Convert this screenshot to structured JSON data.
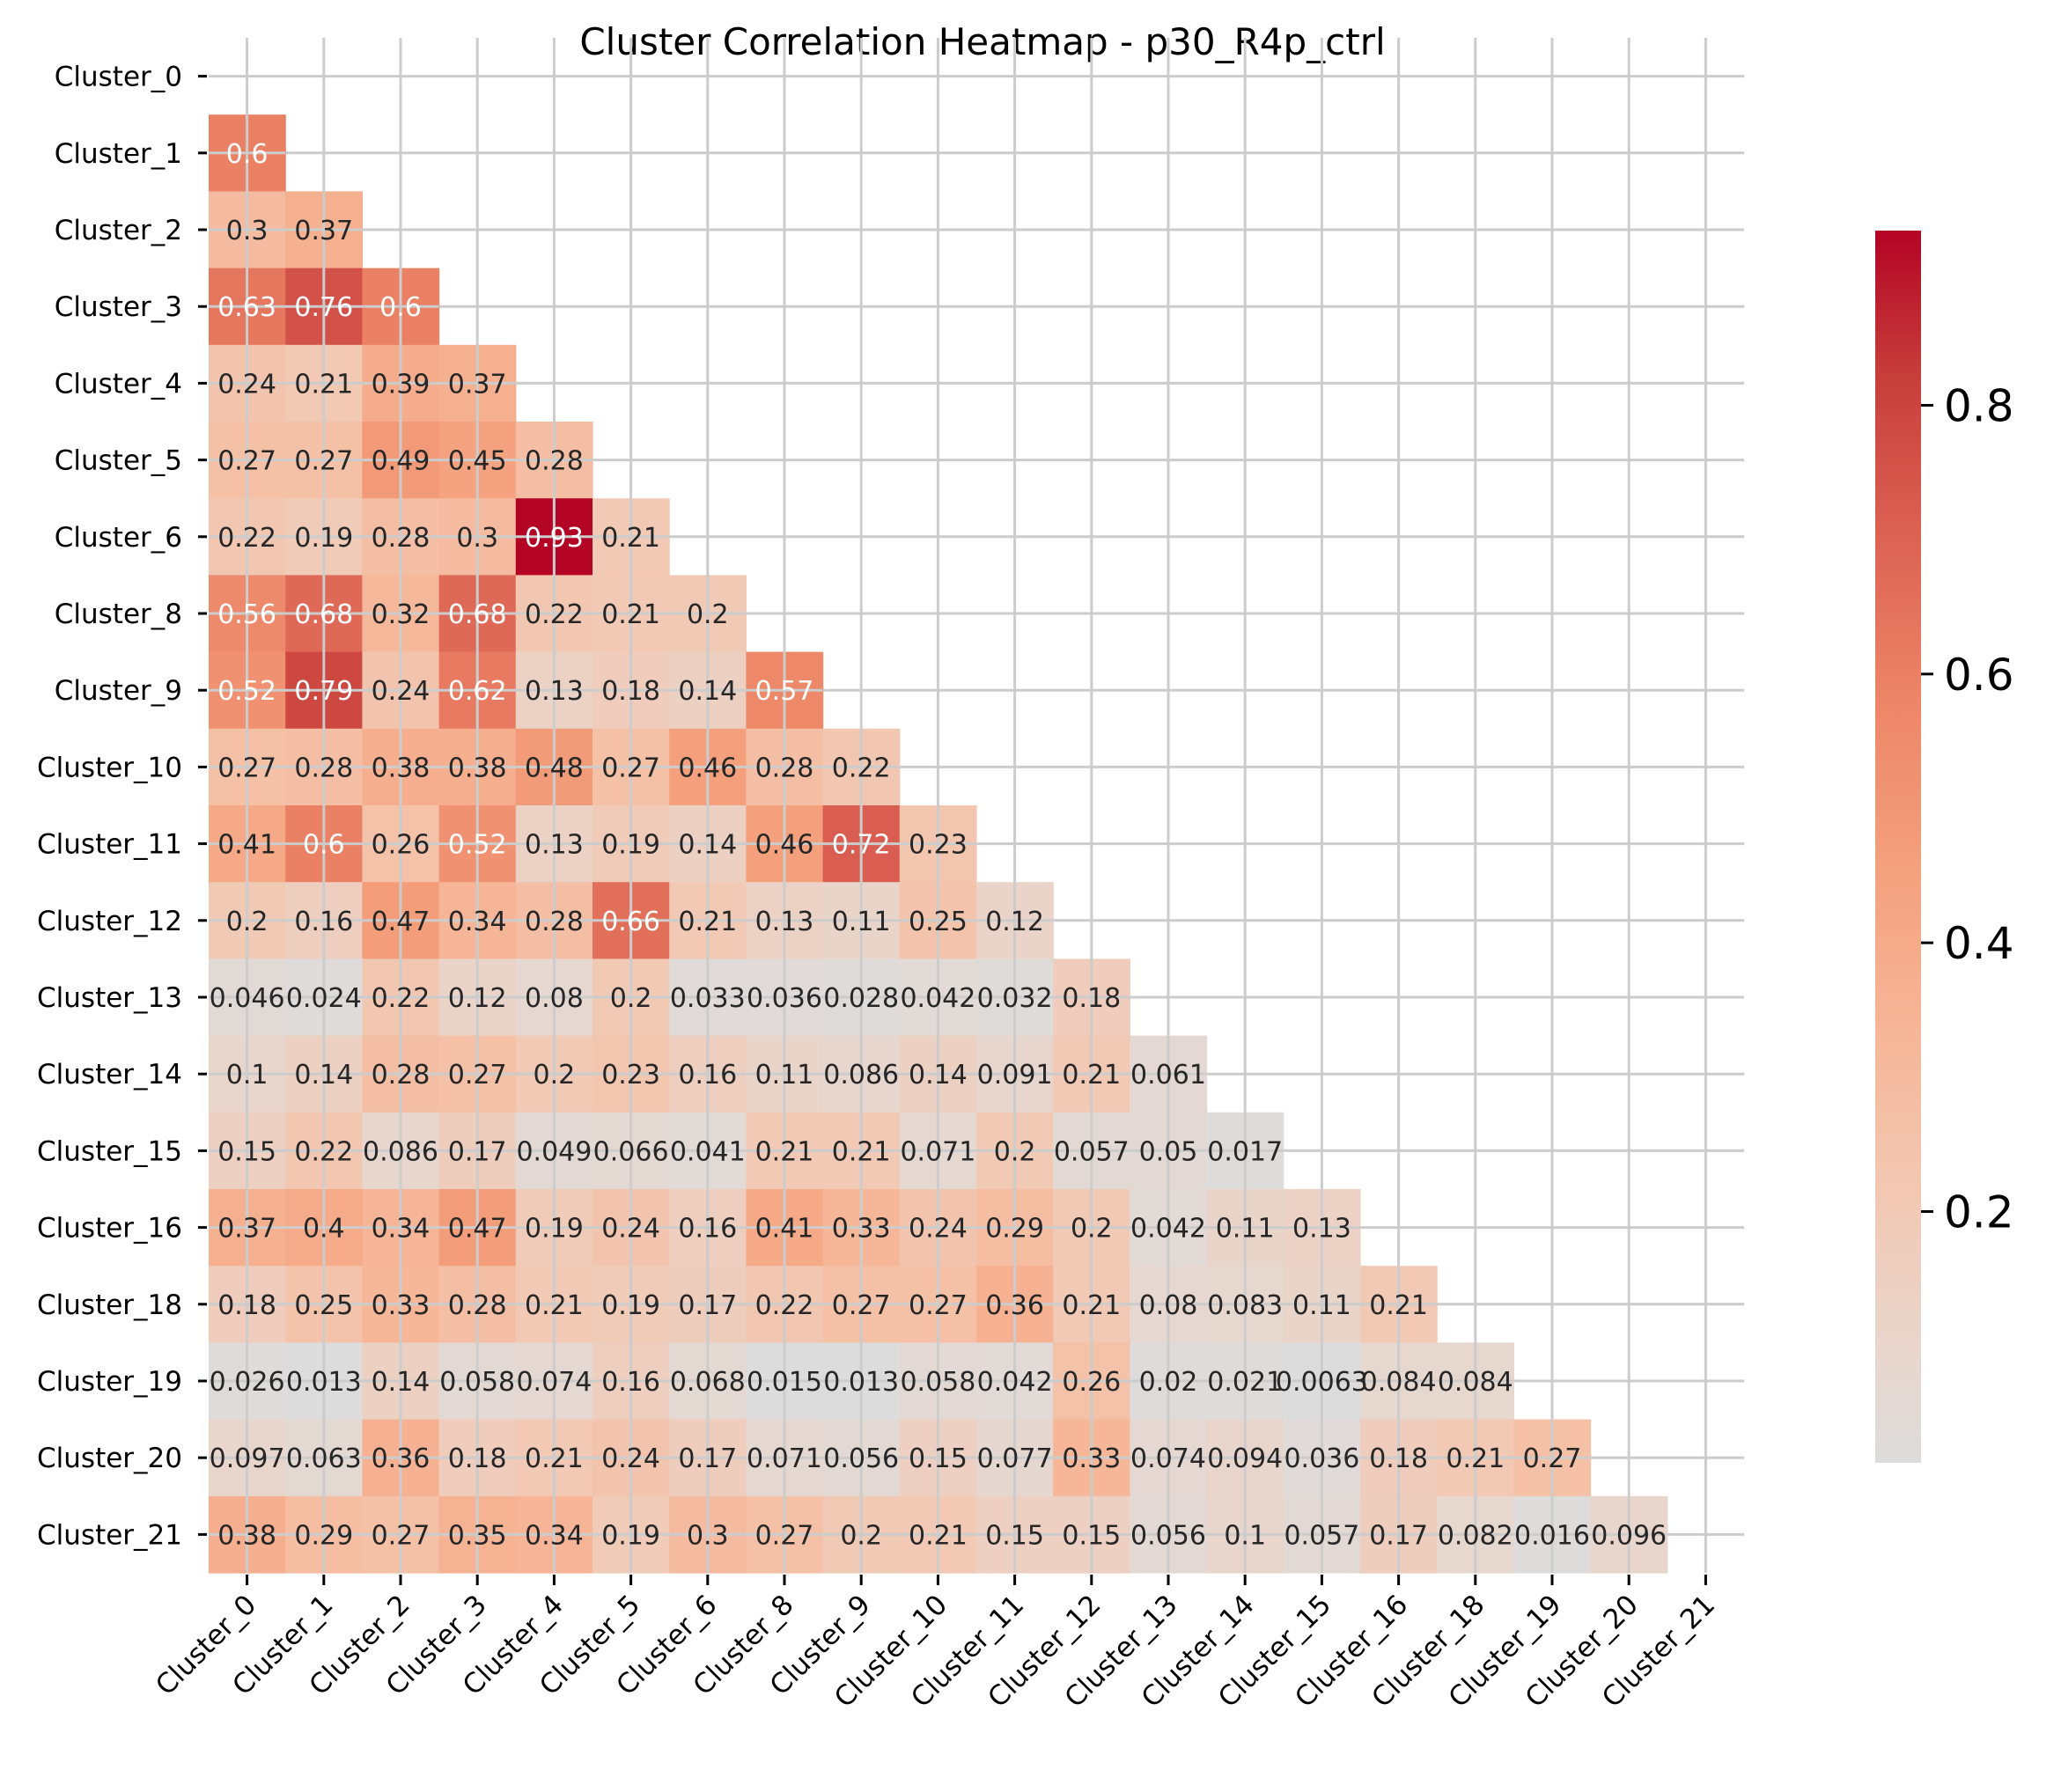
{
  "chart_data": {
    "type": "heatmap",
    "title": "Cluster Correlation Heatmap - p30_R4p_ctrl",
    "xlabel": "",
    "ylabel": "",
    "labels": [
      "Cluster_0",
      "Cluster_1",
      "Cluster_2",
      "Cluster_3",
      "Cluster_4",
      "Cluster_5",
      "Cluster_6",
      "Cluster_8",
      "Cluster_9",
      "Cluster_10",
      "Cluster_11",
      "Cluster_12",
      "Cluster_13",
      "Cluster_14",
      "Cluster_15",
      "Cluster_16",
      "Cluster_18",
      "Cluster_19",
      "Cluster_20",
      "Cluster_21"
    ],
    "mask": "upper-triangle-including-diagonal",
    "colormap": "coolwarm",
    "vmin": 0.013,
    "vmax": 0.93,
    "colorbar_ticks": [
      0.2,
      0.4,
      0.6,
      0.8
    ],
    "colorbar_tick_labels": [
      "0.2",
      "0.4",
      "0.6",
      "0.8"
    ],
    "grid": true,
    "rows": [
      [],
      [
        "0.6"
      ],
      [
        "0.3",
        "0.37"
      ],
      [
        "0.63",
        "0.76",
        "0.6"
      ],
      [
        "0.24",
        "0.21",
        "0.39",
        "0.37"
      ],
      [
        "0.27",
        "0.27",
        "0.49",
        "0.45",
        "0.28"
      ],
      [
        "0.22",
        "0.19",
        "0.28",
        "0.3",
        "0.93",
        "0.21"
      ],
      [
        "0.56",
        "0.68",
        "0.32",
        "0.68",
        "0.22",
        "0.21",
        "0.2"
      ],
      [
        "0.52",
        "0.79",
        "0.24",
        "0.62",
        "0.13",
        "0.18",
        "0.14",
        "0.57"
      ],
      [
        "0.27",
        "0.28",
        "0.38",
        "0.38",
        "0.48",
        "0.27",
        "0.46",
        "0.28",
        "0.22"
      ],
      [
        "0.41",
        "0.6",
        "0.26",
        "0.52",
        "0.13",
        "0.19",
        "0.14",
        "0.46",
        "0.72",
        "0.23"
      ],
      [
        "0.2",
        "0.16",
        "0.47",
        "0.34",
        "0.28",
        "0.66",
        "0.21",
        "0.13",
        "0.11",
        "0.25",
        "0.12"
      ],
      [
        "0.046",
        "0.024",
        "0.22",
        "0.12",
        "0.08",
        "0.2",
        "0.033",
        "0.036",
        "0.028",
        "0.042",
        "0.032",
        "0.18"
      ],
      [
        "0.1",
        "0.14",
        "0.28",
        "0.27",
        "0.2",
        "0.23",
        "0.16",
        "0.11",
        "0.086",
        "0.14",
        "0.091",
        "0.21",
        "0.061"
      ],
      [
        "0.15",
        "0.22",
        "0.086",
        "0.17",
        "0.049",
        "0.066",
        "0.041",
        "0.21",
        "0.21",
        "0.071",
        "0.2",
        "0.057",
        "0.05",
        "0.017"
      ],
      [
        "0.37",
        "0.4",
        "0.34",
        "0.47",
        "0.19",
        "0.24",
        "0.16",
        "0.41",
        "0.33",
        "0.24",
        "0.29",
        "0.2",
        "0.042",
        "0.11",
        "0.13"
      ],
      [
        "0.18",
        "0.25",
        "0.33",
        "0.28",
        "0.21",
        "0.19",
        "0.17",
        "0.22",
        "0.27",
        "0.27",
        "0.36",
        "0.21",
        "0.08",
        "0.083",
        "0.11",
        "0.21"
      ],
      [
        "0.026",
        "0.013",
        "0.14",
        "0.058",
        "0.074",
        "0.16",
        "0.068",
        "0.015",
        "0.013",
        "0.058",
        "0.042",
        "0.26",
        "0.02",
        "0.021",
        "0.0063",
        "0.084",
        "0.084"
      ],
      [
        "0.097",
        "0.063",
        "0.36",
        "0.18",
        "0.21",
        "0.24",
        "0.17",
        "0.071",
        "0.056",
        "0.15",
        "0.077",
        "0.33",
        "0.074",
        "0.094",
        "0.036",
        "0.18",
        "0.21",
        "0.27"
      ],
      [
        "0.38",
        "0.29",
        "0.27",
        "0.35",
        "0.34",
        "0.19",
        "0.3",
        "0.27",
        "0.2",
        "0.21",
        "0.15",
        "0.15",
        "0.056",
        "0.1",
        "0.057",
        "0.17",
        "0.082",
        "0.016",
        "0.096"
      ]
    ]
  }
}
